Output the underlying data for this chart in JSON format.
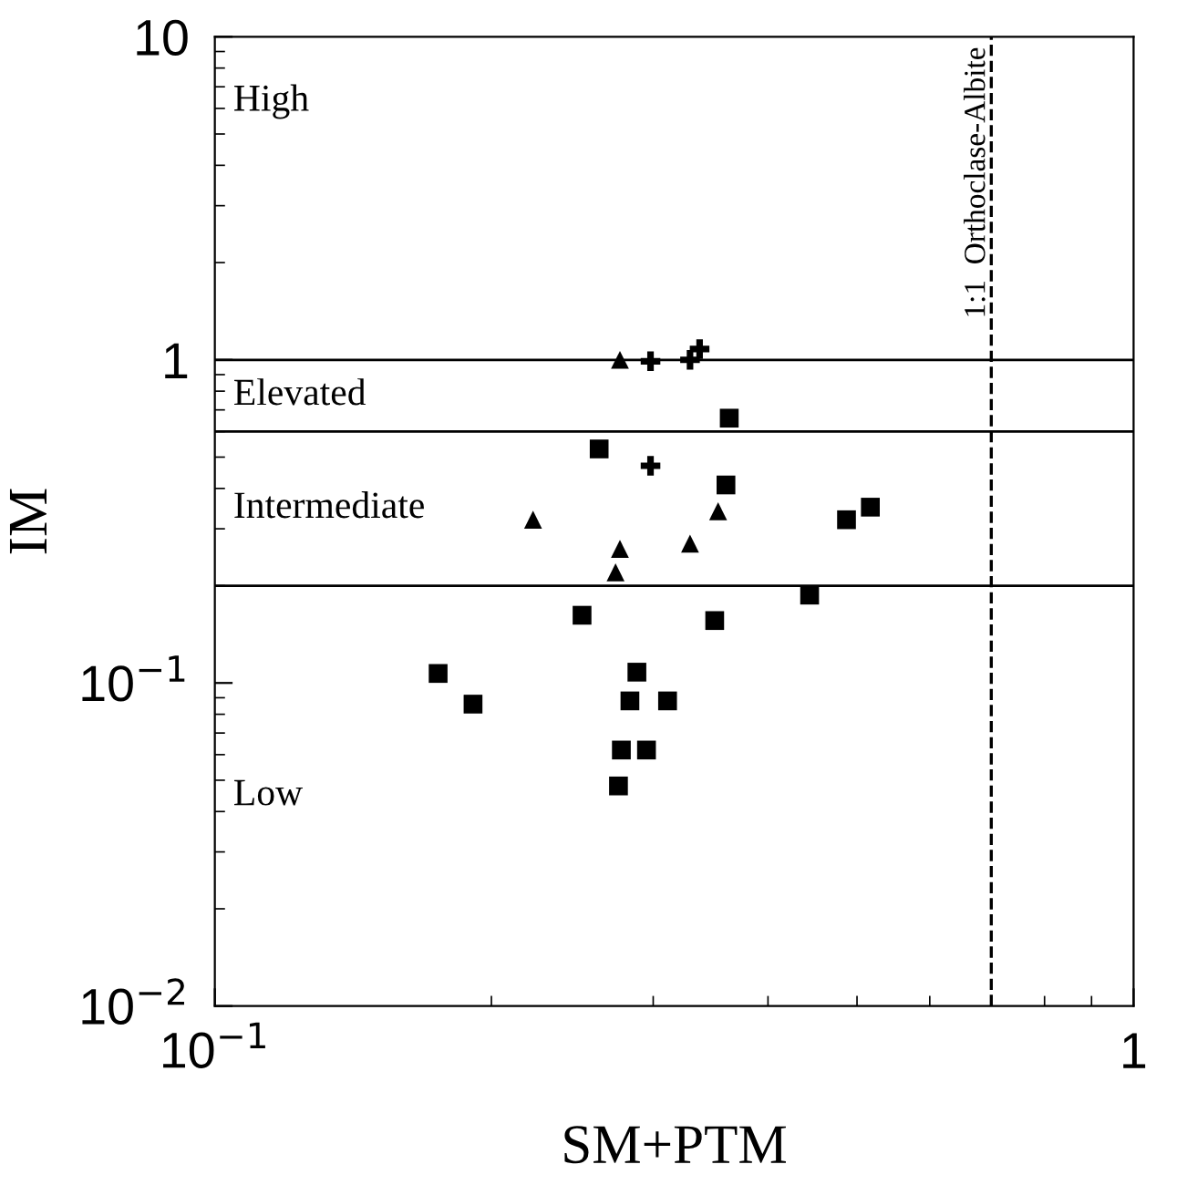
{
  "chart_data": {
    "type": "scatter",
    "xlabel": "SM+PTM",
    "ylabel": "IM",
    "log": "xy",
    "xlim": [
      0.1,
      1
    ],
    "ylim": [
      0.01,
      10
    ],
    "xticks": [
      {
        "value": 0.1,
        "label": "10$^{−1}$"
      },
      1
    ],
    "yticks": [
      {
        "value": 0.01,
        "label": "10$^{−2}$"
      },
      {
        "value": 0.1,
        "label": "10$^{−1}$"
      },
      1,
      10
    ],
    "grid": false,
    "legend": false,
    "series": [
      {
        "marker": "square",
        "color": "#000000",
        "x": [
          0.175,
          0.191,
          0.251,
          0.262,
          0.288,
          0.283,
          0.311,
          0.277,
          0.295,
          0.275,
          0.363,
          0.36,
          0.487,
          0.517,
          0.444,
          0.35
        ],
        "values": [
          0.107,
          0.086,
          0.162,
          0.53,
          0.108,
          0.088,
          0.088,
          0.062,
          0.062,
          0.048,
          0.66,
          0.41,
          0.32,
          0.35,
          0.187,
          0.156
        ]
      },
      {
        "marker": "triangle",
        "color": "#000000",
        "x": [
          0.222,
          0.276,
          0.276,
          0.273,
          0.353,
          0.329
        ],
        "values": [
          0.32,
          1.0,
          0.26,
          0.22,
          0.34,
          0.27
        ]
      },
      {
        "marker": "cross",
        "color": "#000000",
        "x": [
          0.298,
          0.298,
          0.329,
          0.337
        ],
        "values": [
          0.99,
          0.47,
          1.0,
          1.08
        ]
      }
    ],
    "ref_lines": [
      {
        "axis": "y",
        "value": 1,
        "color": "#000000",
        "line_style": "solid"
      },
      {
        "axis": "y",
        "value": 0.6,
        "color": "#000000",
        "line_style": "solid"
      },
      {
        "axis": "y",
        "value": 0.2,
        "color": "#000000",
        "line_style": "solid"
      },
      {
        "axis": "x",
        "value": 0.7,
        "label": "1:1  Orthoclase-Albite",
        "color": "#000000",
        "line_style": "dashed"
      }
    ],
    "annotations": [
      "High",
      "Elevated",
      "Intermediate",
      "Low"
    ]
  }
}
